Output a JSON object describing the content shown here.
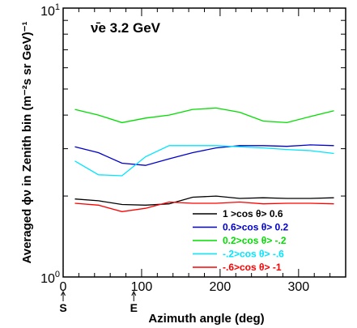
{
  "chart_data": {
    "type": "line",
    "title": "ν̄e   3.2 GeV",
    "xlabel": "Azimuth angle (deg)",
    "ylabel": "Averaged ϕν in Zenith bin   (m⁻²s sr GeV)⁻¹",
    "xlim": [
      0,
      360
    ],
    "ylim": [
      1,
      10
    ],
    "yscale": "log",
    "x_ticks": [
      "0",
      "100",
      "200",
      "300"
    ],
    "y_ticks": [
      "10⁰",
      "10¹"
    ],
    "direction_markers": [
      {
        "label": "S",
        "x": 0
      },
      {
        "label": "E",
        "x": 90
      }
    ],
    "legend_position": "lower-right",
    "x": [
      15,
      45,
      75,
      105,
      135,
      165,
      195,
      225,
      255,
      285,
      315,
      345
    ],
    "series": [
      {
        "name": "1 >cos  θ> 0.6",
        "color": "#000000",
        "values": [
          1.95,
          1.92,
          1.86,
          1.85,
          1.87,
          1.98,
          2.0,
          1.96,
          1.97,
          1.96,
          1.96,
          1.97
        ]
      },
      {
        "name": "0.6>cos  θ> 0.2",
        "color": "#0000cc",
        "values": [
          3.05,
          2.9,
          2.65,
          2.6,
          2.75,
          2.9,
          3.02,
          3.08,
          3.08,
          3.06,
          3.1,
          3.08
        ]
      },
      {
        "name": "0.2>cos  θ> -.2",
        "color": "#00dd00",
        "values": [
          4.2,
          4.0,
          3.75,
          3.9,
          4.0,
          4.2,
          4.25,
          4.1,
          3.8,
          3.75,
          3.95,
          4.15
        ]
      },
      {
        "name": "-.2>cos  θ> -.6",
        "color": "#00e5ff",
        "values": [
          2.7,
          2.4,
          2.38,
          2.8,
          3.08,
          3.08,
          3.08,
          3.05,
          3.02,
          2.98,
          2.95,
          2.88
        ]
      },
      {
        "name": "-.6>cos  θ> -1",
        "color": "#ff0000",
        "values": [
          1.88,
          1.85,
          1.75,
          1.8,
          1.9,
          1.88,
          1.88,
          1.9,
          1.87,
          1.88,
          1.88,
          1.87
        ]
      }
    ]
  }
}
